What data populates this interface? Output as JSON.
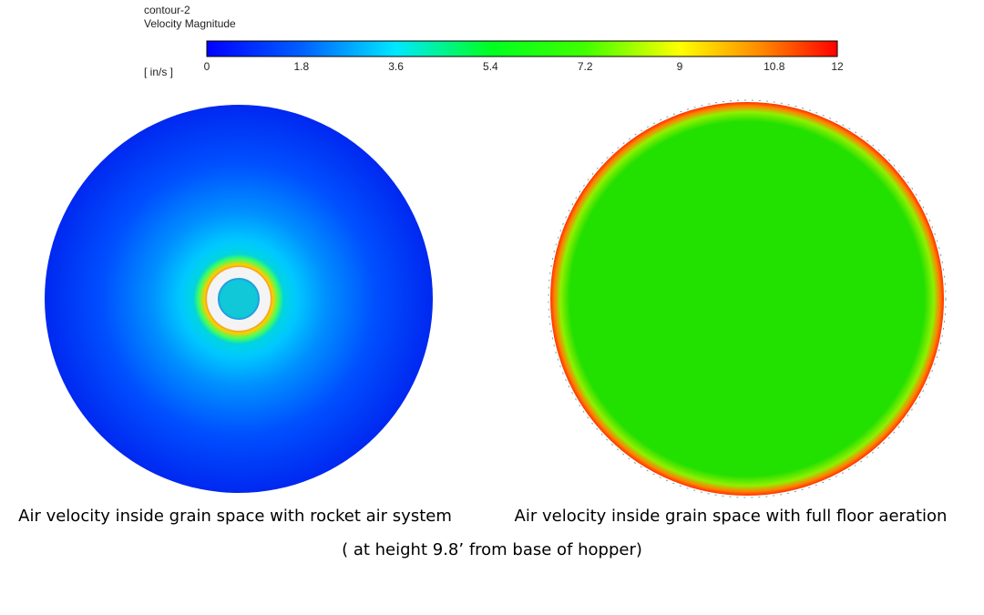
{
  "legend": {
    "title": "contour-2",
    "quantity": "Velocity Magnitude",
    "unit": "[ in/s ]",
    "ticks": [
      0,
      1.8,
      3.6,
      5.4,
      7.2,
      9,
      10.8,
      12
    ]
  },
  "panels": [
    {
      "caption": "Air velocity inside grain space with rocket air system"
    },
    {
      "caption": "Air velocity inside grain space with full floor aeration"
    }
  ],
  "note": "( at height 9.8’ from base of hopper)"
}
